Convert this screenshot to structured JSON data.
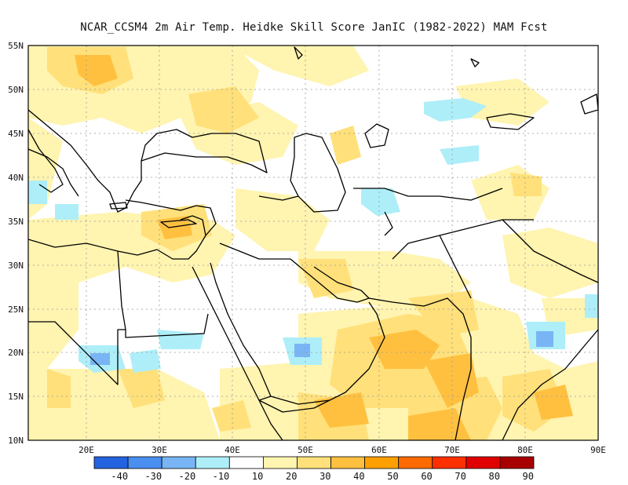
{
  "title": "NCAR_CCSM4  2m Air Temp. Heidke Skill Score JanIC (1982-2022) MAM Fcst",
  "map": {
    "lon_range": [
      12,
      90
    ],
    "lat_range": [
      10,
      55
    ],
    "lat_labels": [
      "55N",
      "50N",
      "45N",
      "40N",
      "35N",
      "30N",
      "25N",
      "20N",
      "15N",
      "10N"
    ],
    "lon_labels": [
      "20E",
      "30E",
      "40E",
      "50E",
      "60E",
      "70E",
      "80E",
      "90E"
    ],
    "gridlines": "dotted"
  },
  "colorbar": {
    "colors": [
      "#2463e0",
      "#4a8ef0",
      "#79b5f5",
      "#aeeef8",
      "#ffffff",
      "#fff4b0",
      "#ffe07a",
      "#ffc040",
      "#ffa000",
      "#ff6a00",
      "#ff3000",
      "#e00000",
      "#a80000"
    ],
    "labels": [
      "-40",
      "-30",
      "-20",
      "-10",
      "10",
      "20",
      "30",
      "40",
      "50",
      "60",
      "70",
      "80",
      "90"
    ]
  }
}
